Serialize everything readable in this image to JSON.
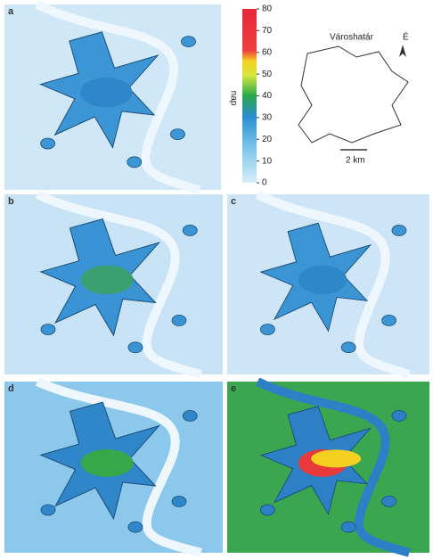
{
  "panels": [
    {
      "label": "a"
    },
    {
      "label": "b"
    },
    {
      "label": "c"
    },
    {
      "label": "d"
    },
    {
      "label": "e"
    }
  ],
  "colorbar": {
    "label": "nap",
    "range": [
      0,
      80
    ],
    "ticks": [
      0,
      10,
      20,
      30,
      40,
      50,
      60,
      70,
      80
    ]
  },
  "legend": {
    "title": "Városhatár",
    "north": "É",
    "scale": "2 km"
  }
}
